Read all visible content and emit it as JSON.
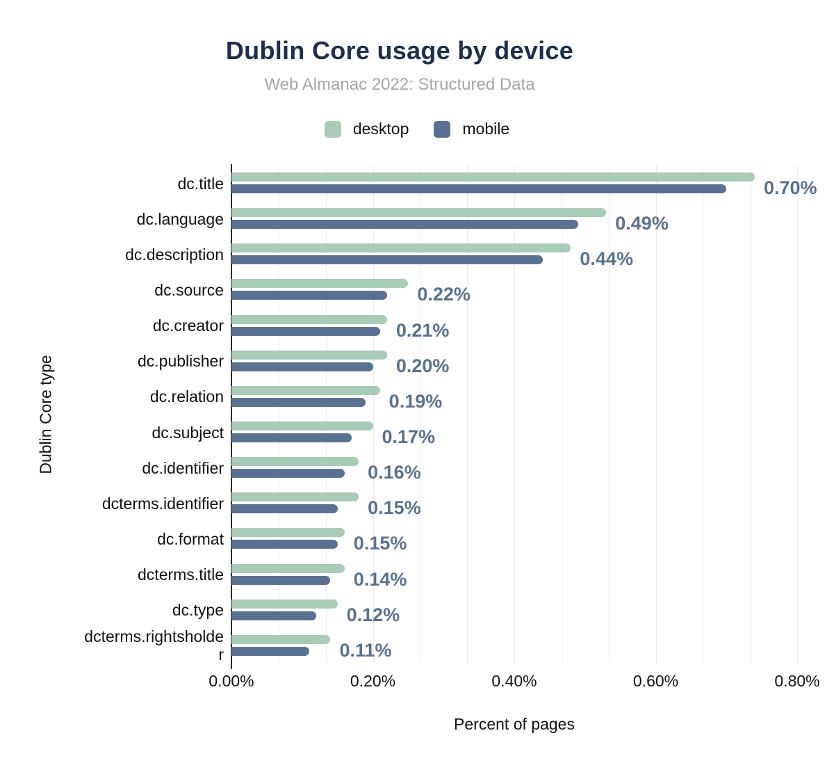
{
  "header": {
    "title": "Dublin Core usage by device",
    "subtitle": "Web Almanac 2022: Structured Data"
  },
  "legend": {
    "items": [
      "desktop",
      "mobile"
    ]
  },
  "chart_data": {
    "type": "bar",
    "orientation": "horizontal",
    "title": "Dublin Core usage by device",
    "subtitle": "Web Almanac 2022: Structured Data",
    "xlabel": "Percent of pages",
    "ylabel": "Dublin Core type",
    "xlim": [
      0,
      0.8
    ],
    "x_ticks": [
      "0.00%",
      "0.20%",
      "0.40%",
      "0.60%",
      "0.80%"
    ],
    "x_tick_values": [
      0,
      0.2,
      0.4,
      0.6,
      0.8
    ],
    "x_minor_grid_step": 0.06667,
    "grid": "vertical-light",
    "legend_position": "top",
    "categories": [
      "dc.title",
      "dc.language",
      "dc.description",
      "dc.source",
      "dc.creator",
      "dc.publisher",
      "dc.relation",
      "dc.subject",
      "dc.identifier",
      "dcterms.identifier",
      "dc.format",
      "dcterms.title",
      "dc.type",
      "dcterms.rightsholder"
    ],
    "series": [
      {
        "name": "desktop",
        "color": "#a9cbb7",
        "values": [
          0.74,
          0.53,
          0.48,
          0.25,
          0.22,
          0.22,
          0.21,
          0.2,
          0.18,
          0.18,
          0.16,
          0.16,
          0.15,
          0.14
        ]
      },
      {
        "name": "mobile",
        "color": "#5b7191",
        "values": [
          0.7,
          0.49,
          0.44,
          0.22,
          0.21,
          0.2,
          0.19,
          0.17,
          0.16,
          0.15,
          0.15,
          0.14,
          0.12,
          0.11
        ]
      }
    ],
    "bar_labels": [
      "0.70%",
      "0.49%",
      "0.44%",
      "0.22%",
      "0.21%",
      "0.20%",
      "0.19%",
      "0.17%",
      "0.16%",
      "0.15%",
      "0.15%",
      "0.14%",
      "0.12%",
      "0.11%"
    ]
  },
  "colors": {
    "title": "#1d2e4e",
    "subtitle": "#a6a6a6",
    "desktop": "#a9cbb7",
    "mobile": "#5b7191",
    "bar_label": "#5b7191",
    "axis_text": "#111111",
    "gridline": "#eaeaea",
    "axis_line": "#2b2b2b"
  }
}
